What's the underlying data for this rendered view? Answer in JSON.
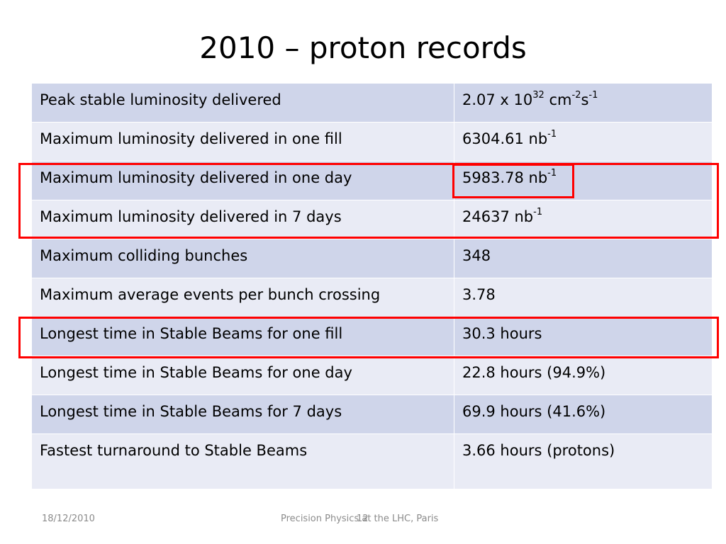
{
  "slide": {
    "title": "2010 – proton records"
  },
  "table": {
    "rows": [
      {
        "label": "Peak stable luminosity delivered",
        "value": "2.07 x 10",
        "value_sup1": "32",
        "value_mid": " cm",
        "value_sup2": "-2",
        "value_mid2": "s",
        "value_sup3": "-1"
      },
      {
        "label": "Maximum luminosity delivered in one fill",
        "value": "6304.61 nb",
        "value_sup1": "-1"
      },
      {
        "label": "Maximum luminosity delivered in one day",
        "value": "5983.78 nb",
        "value_sup1": "-1"
      },
      {
        "label": "Maximum luminosity delivered in 7 days",
        "value": "24637 nb",
        "value_sup1": "-1"
      },
      {
        "label": "Maximum colliding bunches",
        "value": "348"
      },
      {
        "label": "Maximum average events per bunch crossing",
        "value": "3.78"
      },
      {
        "label": "Longest time in Stable Beams for one fill",
        "value": "30.3 hours"
      },
      {
        "label": "Longest time in Stable Beams for one day",
        "value": "22.8 hours (94.9%)"
      },
      {
        "label": "Longest time in Stable Beams for 7 days",
        "value": "69.9 hours (41.6%)"
      },
      {
        "label": "Fastest turnaround to Stable Beams",
        "value": "3.66 hours (protons)"
      }
    ]
  },
  "colors": {
    "row_dark": "#cfd5ea",
    "row_light": "#e9ebf5",
    "highlight": "#ff0000",
    "footer_text": "#8b8b8b"
  },
  "footer": {
    "date": "18/12/2010",
    "center": "Precision Physics at the LHC, Paris",
    "page": "12"
  }
}
